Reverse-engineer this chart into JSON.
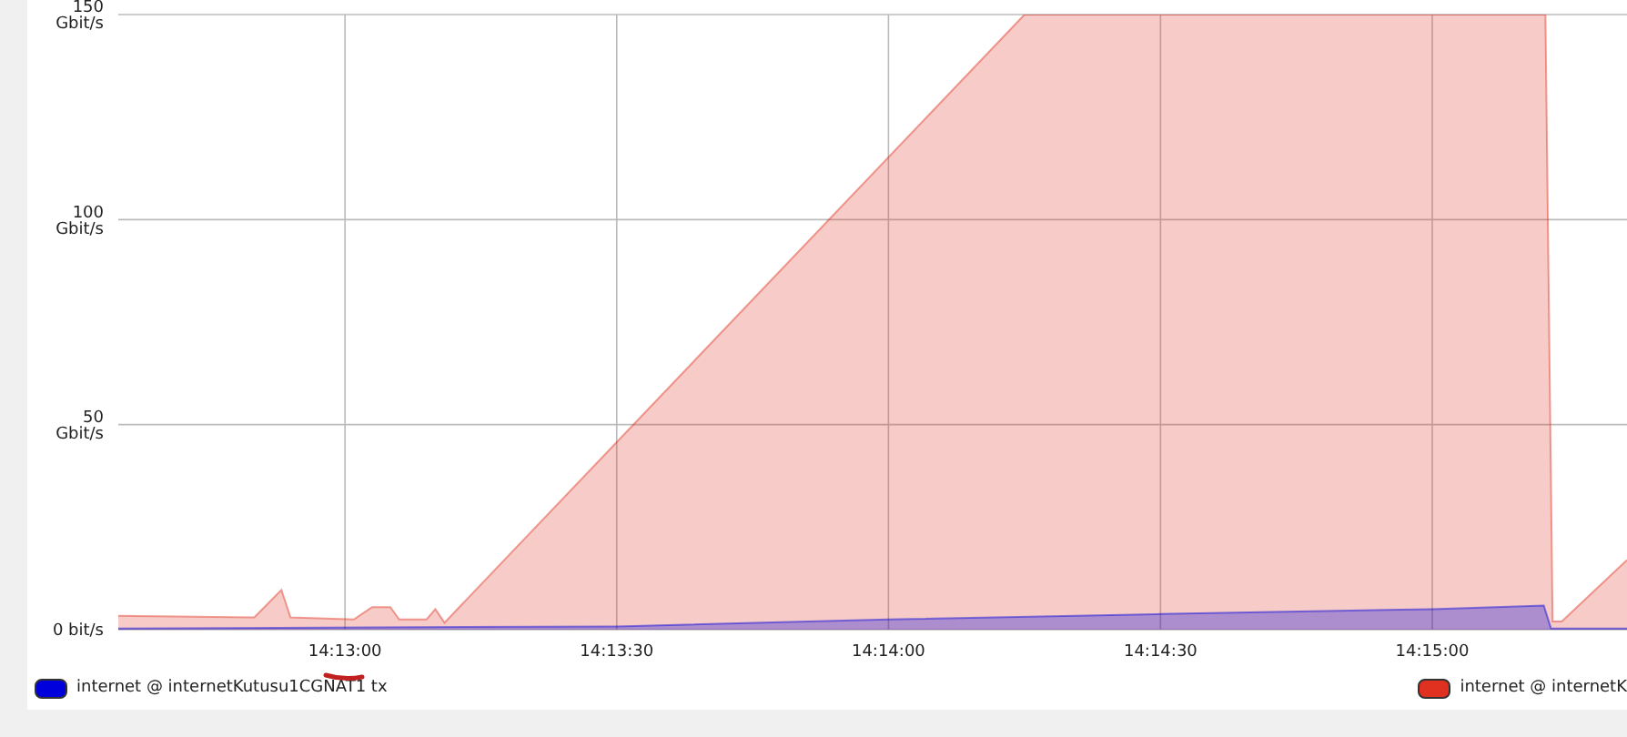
{
  "chart_data": {
    "type": "area",
    "xlim": [
      14.20972,
      14.25597
    ],
    "xticks": [
      {
        "value": 14.21667,
        "label": "14:13:00"
      },
      {
        "value": 14.225,
        "label": "14:13:30"
      },
      {
        "value": 14.23333,
        "label": "14:14:00"
      },
      {
        "value": 14.24167,
        "label": "14:14:30"
      },
      {
        "value": 14.25,
        "label": "14:15:00"
      }
    ],
    "ylim": [
      0,
      150
    ],
    "yticks": [
      {
        "value": 0,
        "label": "0 bit/s"
      },
      {
        "value": 50,
        "label": "50 Gbit/s"
      },
      {
        "value": 100,
        "label": "100 Gbit/s"
      },
      {
        "value": 150,
        "label": "150 Gbit/s"
      }
    ],
    "grid": true,
    "legend": "bottom",
    "series": [
      {
        "name": "internet @ internetK",
        "color": "#e03020",
        "x": [
          14.20972,
          14.21389,
          14.21472,
          14.215,
          14.21694,
          14.2175,
          14.21806,
          14.21833,
          14.21917,
          14.21944,
          14.21972,
          14.2375,
          14.25347,
          14.25369,
          14.25397,
          14.25597
        ],
        "values": [
          3.4,
          3,
          9.7,
          3,
          2.5,
          5.5,
          5.5,
          2.5,
          2.5,
          5,
          1.7,
          150,
          150,
          2,
          2,
          17
        ]
      },
      {
        "name": "internet @ internetKutusu1CGNAT1 tx",
        "color": "#0000dd",
        "x": [
          14.20972,
          14.225,
          14.23333,
          14.24167,
          14.25,
          14.25342,
          14.25364,
          14.25597
        ],
        "values": [
          0.3,
          0.8,
          2.5,
          3.8,
          5,
          5.9,
          0.3,
          0.3
        ]
      }
    ]
  }
}
